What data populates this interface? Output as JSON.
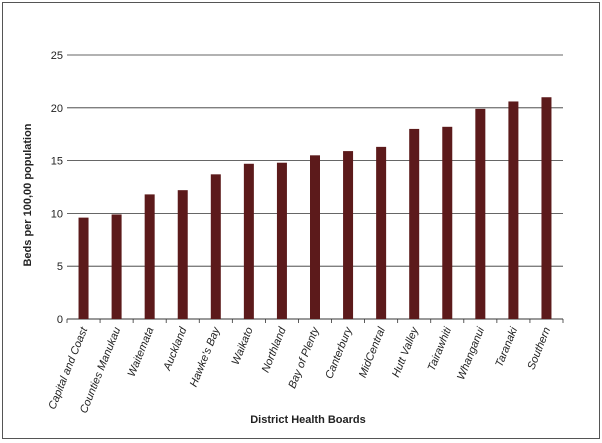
{
  "chart_data": {
    "type": "bar",
    "title": "",
    "xlabel": "District Health Boards",
    "ylabel": "Beds per 100,00 population",
    "ylim": [
      0,
      25
    ],
    "yticks": [
      0,
      5,
      10,
      15,
      20,
      25
    ],
    "grid": true,
    "legend": "none",
    "bar_color": "#5c1a1b",
    "categories": [
      "Capital and Coast",
      "Counties Manukau",
      "Waitemata",
      "Auckland",
      "Hawke's Bay",
      "Waikato",
      "Northland",
      "Bay of Plenty",
      "Canterbury",
      "MidCentral",
      "Hutt Valley",
      "Tairawhiti",
      "Whanganui",
      "Taranaki",
      "Southern"
    ],
    "values": [
      9.6,
      9.9,
      11.8,
      12.2,
      13.7,
      14.7,
      14.8,
      15.5,
      15.9,
      16.3,
      18.0,
      18.2,
      19.9,
      20.6,
      21.0
    ]
  }
}
